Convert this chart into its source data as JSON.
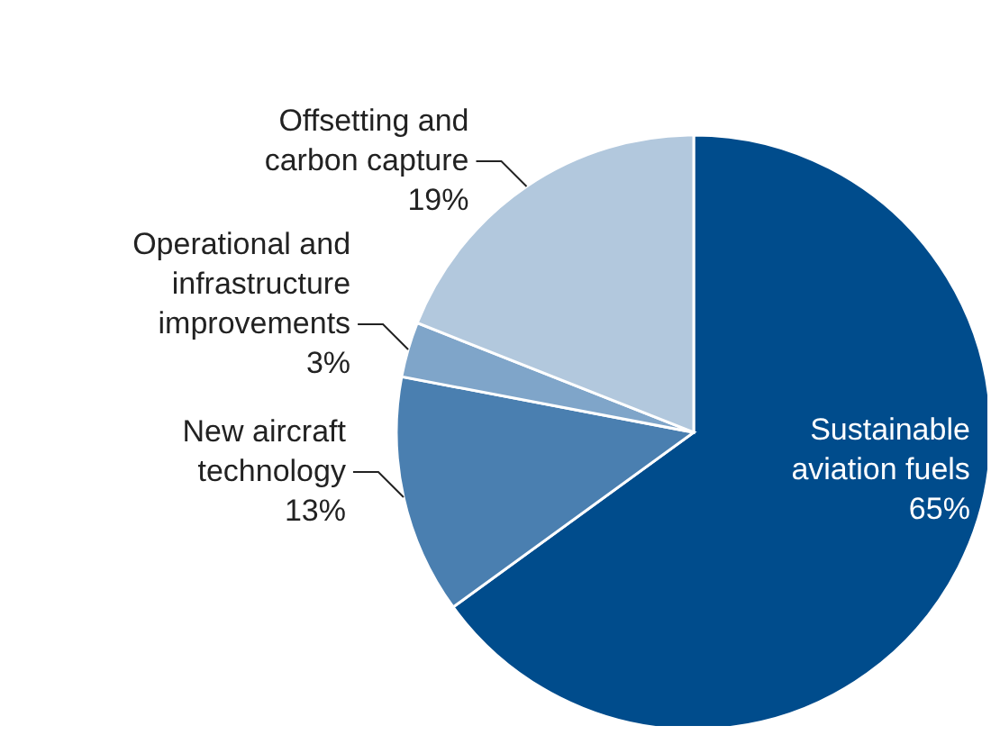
{
  "chart_data": {
    "type": "pie",
    "categories": [
      "Sustainable aviation fuels",
      "New aircraft technology",
      "Operational and infrastructure improvements",
      "Offsetting and carbon capture"
    ],
    "values": [
      65,
      13,
      3,
      19
    ],
    "value_labels": [
      "65%",
      "13%",
      "3%",
      "19%"
    ],
    "colors": [
      "#004c8c",
      "#4a7fb0",
      "#7fa5c9",
      "#b2c8dd"
    ]
  }
}
